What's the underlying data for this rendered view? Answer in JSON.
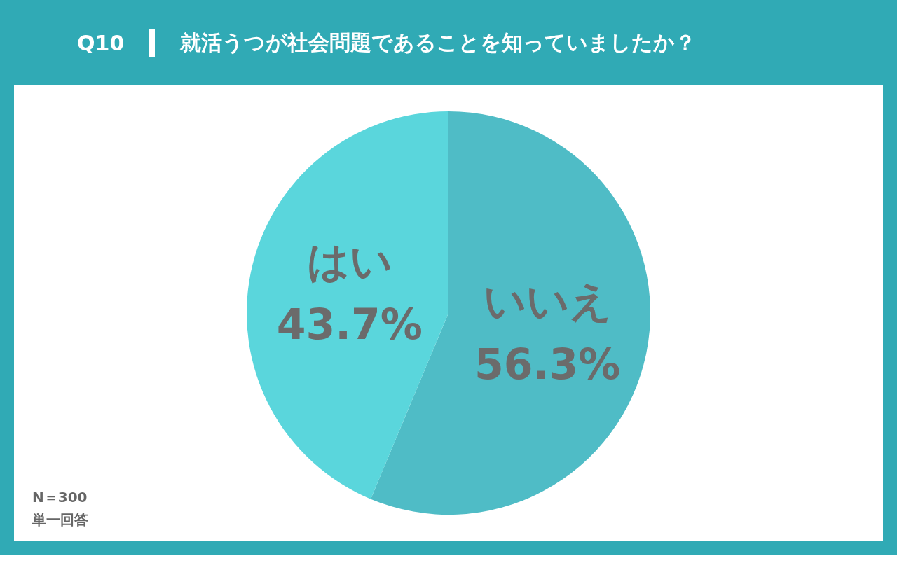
{
  "chart_data": {
    "type": "pie",
    "title": "Q10",
    "subtitle": "就活うつが社会問題であることを知っていましたか？",
    "categories": [
      "いいえ",
      "はい"
    ],
    "values": [
      56.3,
      43.7
    ],
    "value_labels": [
      "56.3%",
      "43.7%"
    ],
    "colors": [
      "#4fbcc6",
      "#5ad6dc"
    ],
    "legend": false,
    "annotations": [
      "N＝300",
      "単一回答"
    ]
  }
}
